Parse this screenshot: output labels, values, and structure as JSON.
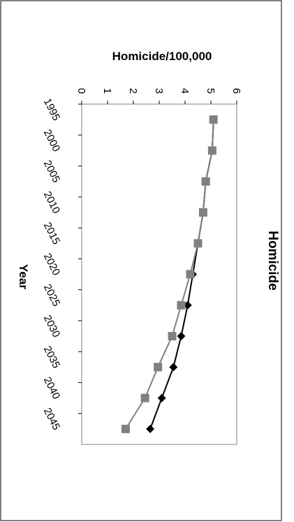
{
  "chart_data": {
    "type": "line",
    "orientation": "rotated 90° clockwise (page viewed sideways)",
    "title": "Homicide",
    "xlabel": "Year",
    "ylabel": "Homicide/100,000",
    "x_ticks": [
      1995,
      2000,
      2005,
      2010,
      2015,
      2020,
      2025,
      2030,
      2035,
      2040,
      2045
    ],
    "y_ticks": [
      0,
      1,
      2,
      3,
      4,
      5,
      6
    ],
    "xlim": [
      1995,
      2050
    ],
    "ylim": [
      0,
      6
    ],
    "grid": false,
    "legend": "none",
    "series": [
      {
        "color": "#000000",
        "marker": "diamond",
        "x": [
          1997.5,
          2002.5,
          2007.5,
          2012.5,
          2017.5,
          2022.5,
          2027.5,
          2032.5,
          2037.5,
          2042.5,
          2047.5
        ],
        "y": [
          5.1,
          5.05,
          4.8,
          4.7,
          4.5,
          4.3,
          4.1,
          3.85,
          3.55,
          3.1,
          2.65
        ]
      },
      {
        "color": "#808080",
        "marker": "square",
        "x": [
          1997.5,
          2002.5,
          2007.5,
          2012.5,
          2017.5,
          2022.5,
          2027.5,
          2032.5,
          2037.5,
          2042.5,
          2047.5
        ],
        "y": [
          5.1,
          5.05,
          4.8,
          4.7,
          4.5,
          4.2,
          3.85,
          3.5,
          2.95,
          2.45,
          1.7
        ]
      }
    ]
  }
}
